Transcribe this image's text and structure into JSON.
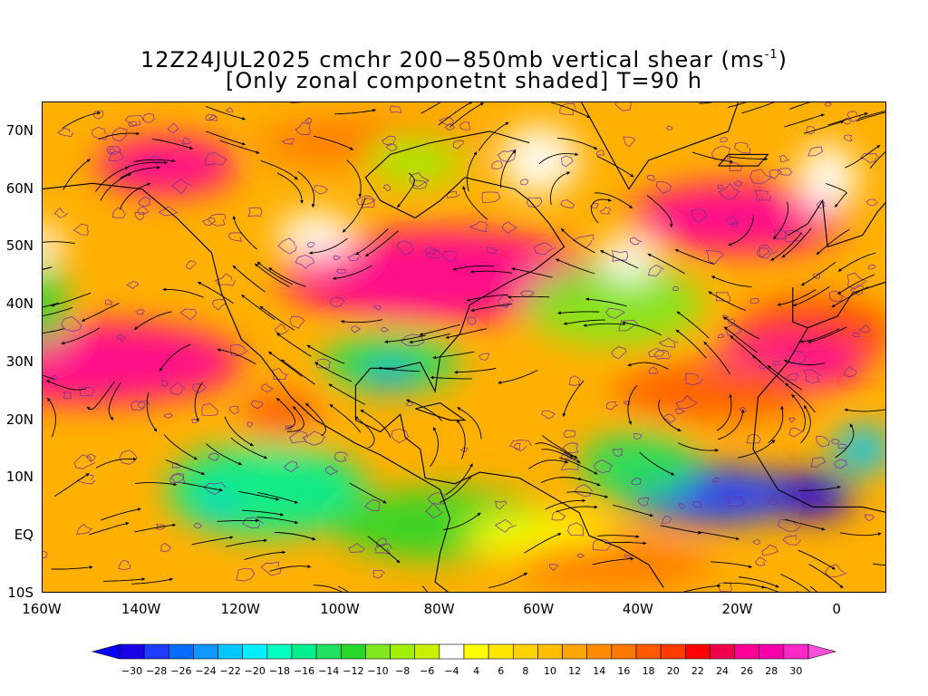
{
  "title": {
    "line1_prefix": "12Z24JUL2025 cmchr 200−850mb vertical shear (ms",
    "line1_sup": "-1",
    "line1_suffix": ")",
    "line2": "[Only zonal componetnt shaded] T=90 h"
  },
  "map": {
    "lat_labels": [
      "70N",
      "60N",
      "50N",
      "40N",
      "30N",
      "20N",
      "10N",
      "EQ",
      "10S"
    ],
    "lon_labels": [
      "160W",
      "140W",
      "120W",
      "100W",
      "80W",
      "60W",
      "40W",
      "20W",
      "0"
    ],
    "lon_range": [
      -160,
      10
    ],
    "lat_range": [
      -10,
      75
    ]
  },
  "colorbar": {
    "tick_labels": [
      "-30",
      "-28",
      "-26",
      "-24",
      "-22",
      "-20",
      "-18",
      "-16",
      "-14",
      "-12",
      "-10",
      "-8",
      "-6",
      "-4",
      "4",
      "6",
      "8",
      "10",
      "12",
      "14",
      "16",
      "18",
      "20",
      "22",
      "24",
      "26",
      "28",
      "30"
    ],
    "colors": [
      "#1a00e6",
      "#1e3cff",
      "#0a6cff",
      "#0f96ff",
      "#00c8ff",
      "#00f0ff",
      "#00ffc0",
      "#00f090",
      "#20e060",
      "#28d828",
      "#7fe81e",
      "#a0f000",
      "#c8f000",
      "#ffffff",
      "#ffff00",
      "#ffe600",
      "#ffd200",
      "#ffbe00",
      "#ffa500",
      "#ff8c00",
      "#ff7800",
      "#ff5a00",
      "#ff3c00",
      "#ff0000",
      "#f0004b",
      "#ff0096",
      "#f500aa",
      "#ff28c8"
    ],
    "low_color": "#0000ff",
    "high_color": "#ff50dc"
  }
}
